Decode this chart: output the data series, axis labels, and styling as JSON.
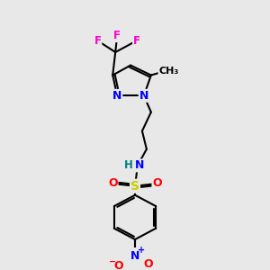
{
  "bg_color": "#e8e8e8",
  "atom_colors": {
    "C": "#000000",
    "H": "#008080",
    "N": "#0000ff",
    "O": "#ff0000",
    "S": "#cccc00",
    "F": "#ff00cc"
  },
  "figsize": [
    3.0,
    3.0
  ],
  "dpi": 100
}
